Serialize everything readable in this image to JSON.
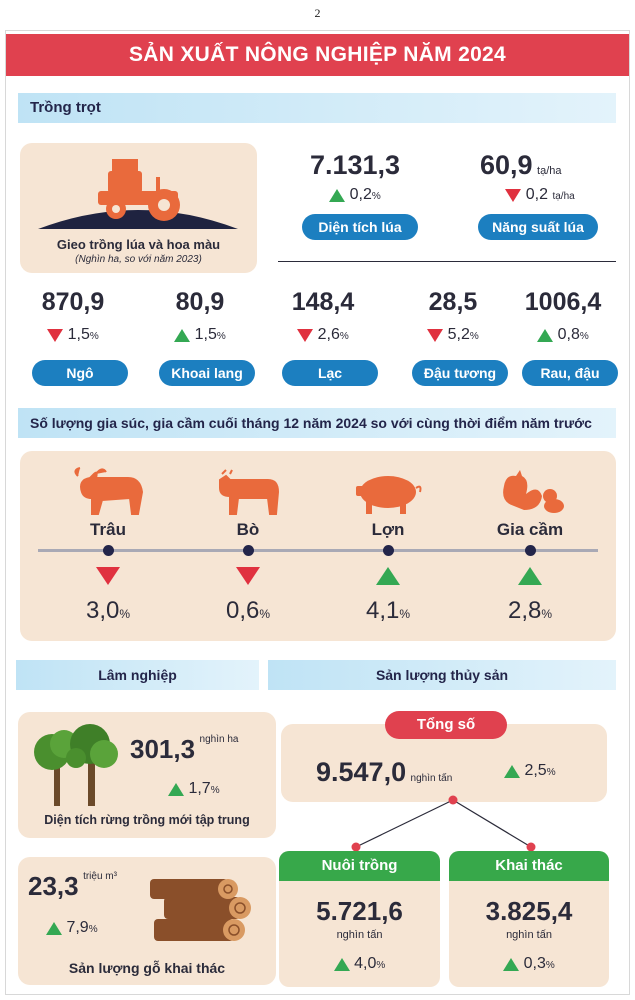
{
  "page_number": "2",
  "title": "SẢN XUẤT NÔNG NGHIỆP NĂM 2024",
  "colors": {
    "title_bg": "#e0414f",
    "pill_blue": "#1c7fc0",
    "card_bg": "#f6e5d4",
    "up": "#34a853",
    "down": "#e0313f",
    "green": "#37a84a"
  },
  "trong_trot": {
    "header": "Trồng trọt",
    "intro_title": "Gieo trồng lúa và hoa màu",
    "intro_note": "(Nghìn ha, so với năm 2023)",
    "dien_tich_lua": {
      "value": "7.131,3",
      "change": "0,2",
      "pct_sign": "%",
      "direction": "up",
      "label": "Diện tích lúa"
    },
    "nang_suat_lua": {
      "value": "60,9",
      "unit": "tạ/ha",
      "change": "0,2",
      "change_unit": "tạ/ha",
      "direction": "down",
      "label": "Năng suất lúa"
    },
    "crops": [
      {
        "value": "870,9",
        "change": "1,5",
        "direction": "down",
        "label": "Ngô"
      },
      {
        "value": "80,9",
        "change": "1,5",
        "direction": "up",
        "label": "Khoai lang"
      },
      {
        "value": "148,4",
        "change": "2,6",
        "direction": "down",
        "label": "Lạc"
      },
      {
        "value": "28,5",
        "change": "5,2",
        "direction": "down",
        "label": "Đậu tương"
      },
      {
        "value": "1006,4",
        "change": "0,8",
        "direction": "up",
        "label": "Rau, đậu"
      }
    ]
  },
  "livestock": {
    "header": "Số lượng gia súc, gia cầm cuối tháng 12 năm 2024 so với cùng thời điểm năm trước",
    "items": [
      {
        "label": "Trâu",
        "change": "3,0",
        "direction": "down",
        "icon": "buffalo-icon"
      },
      {
        "label": "Bò",
        "change": "0,6",
        "direction": "down",
        "icon": "cow-icon"
      },
      {
        "label": "Lợn",
        "change": "4,1",
        "direction": "up",
        "icon": "pig-icon"
      },
      {
        "label": "Gia cầm",
        "change": "2,8",
        "direction": "up",
        "icon": "poultry-icon"
      }
    ]
  },
  "lam_nghiep": {
    "header": "Lâm nghiệp",
    "rung": {
      "value": "301,3",
      "unit": "nghìn ha",
      "change": "1,7",
      "direction": "up",
      "label": "Diện tích rừng trồng mới tập trung"
    },
    "go": {
      "value": "23,3",
      "unit": "triệu m³",
      "change": "7,9",
      "direction": "up",
      "label": "Sản lượng gỗ khai thác"
    }
  },
  "thuy_san": {
    "header": "Sản lượng thủy sản",
    "total": {
      "badge": "Tổng số",
      "value": "9.547,0",
      "unit": "nghìn tấn",
      "change": "2,5",
      "direction": "up"
    },
    "nuoi_trong": {
      "label": "Nuôi trồng",
      "value": "5.721,6",
      "unit": "nghìn tấn",
      "change": "4,0",
      "direction": "up"
    },
    "khai_thac": {
      "label": "Khai thác",
      "value": "3.825,4",
      "unit": "nghìn tấn",
      "change": "0,3",
      "direction": "up"
    }
  },
  "pct": "%"
}
